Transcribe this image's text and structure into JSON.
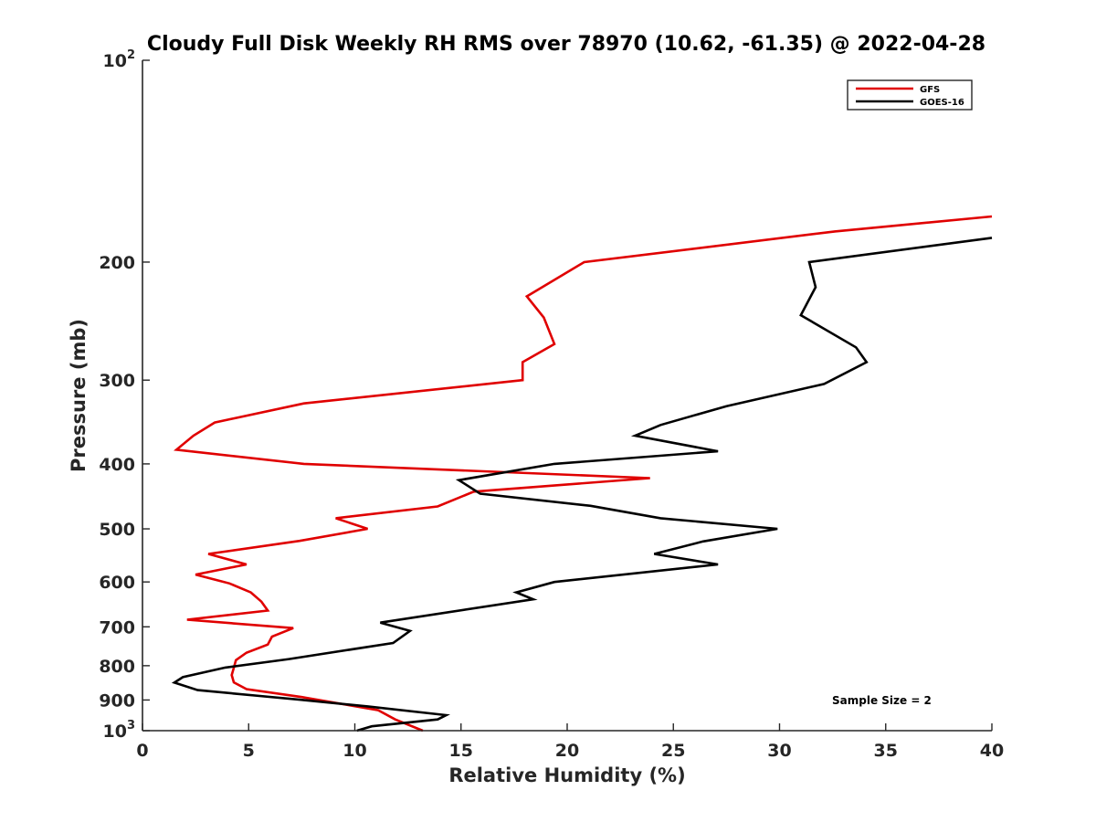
{
  "chart_data": {
    "type": "line",
    "title": "Cloudy Full Disk Weekly RH RMS over 78970 (10.62, -61.35) @ 2022-04-28",
    "xlabel": "Relative Humidity (%)",
    "ylabel": "Pressure (mb)",
    "xlim": [
      0,
      40
    ],
    "ylim": [
      100,
      1000
    ],
    "y_scale": "log",
    "y_reversed": true,
    "grid": false,
    "legend_position": "top-right",
    "annotation": "Sample Size = 2",
    "x_ticks": [
      "0",
      "5",
      "10",
      "15",
      "20",
      "25",
      "30",
      "35",
      "40"
    ],
    "y_ticks": [
      {
        "value": 100,
        "base": "10",
        "exp": "2"
      },
      {
        "value": 200,
        "base": "200",
        "exp": ""
      },
      {
        "value": 300,
        "base": "300",
        "exp": ""
      },
      {
        "value": 400,
        "base": "400",
        "exp": ""
      },
      {
        "value": 500,
        "base": "500",
        "exp": ""
      },
      {
        "value": 600,
        "base": "600",
        "exp": ""
      },
      {
        "value": 700,
        "base": "700",
        "exp": ""
      },
      {
        "value": 800,
        "base": "800",
        "exp": ""
      },
      {
        "value": 900,
        "base": "900",
        "exp": ""
      },
      {
        "value": 1000,
        "base": "10",
        "exp": "3"
      }
    ],
    "series": [
      {
        "name": "GFS",
        "color": "#e00000",
        "points": [
          [
            40,
            171
          ],
          [
            32.6,
            180
          ],
          [
            20.8,
            200
          ],
          [
            18.1,
            225
          ],
          [
            18.9,
            242
          ],
          [
            19.4,
            265
          ],
          [
            17.9,
            282
          ],
          [
            17.9,
            300
          ],
          [
            7.6,
            325
          ],
          [
            3.4,
            347
          ],
          [
            2.4,
            363
          ],
          [
            1.6,
            381
          ],
          [
            7.6,
            400
          ],
          [
            23.9,
            420
          ],
          [
            15.6,
            440
          ],
          [
            13.9,
            463
          ],
          [
            9.1,
            482
          ],
          [
            10.6,
            500
          ],
          [
            7.4,
            521
          ],
          [
            3.1,
            545
          ],
          [
            4.9,
            565
          ],
          [
            2.5,
            585
          ],
          [
            4.1,
            603
          ],
          [
            5.1,
            622
          ],
          [
            5.6,
            642
          ],
          [
            5.9,
            662
          ],
          [
            2.1,
            683
          ],
          [
            7.1,
            703
          ],
          [
            6.1,
            724
          ],
          [
            5.9,
            744
          ],
          [
            4.9,
            765
          ],
          [
            4.4,
            785
          ],
          [
            4.3,
            806
          ],
          [
            4.2,
            826
          ],
          [
            4.3,
            847
          ],
          [
            4.9,
            867
          ],
          [
            7.5,
            891
          ],
          [
            11.1,
            932
          ],
          [
            11.9,
            962
          ],
          [
            13.2,
            1000
          ]
        ]
      },
      {
        "name": "GOES-16",
        "color": "#000000",
        "points": [
          [
            40,
            184
          ],
          [
            31.4,
            200
          ],
          [
            31.7,
            218
          ],
          [
            31.0,
            240
          ],
          [
            33.6,
            268
          ],
          [
            34.1,
            282
          ],
          [
            32.1,
            304
          ],
          [
            27.5,
            328
          ],
          [
            24.4,
            350
          ],
          [
            23.2,
            363
          ],
          [
            27.1,
            383
          ],
          [
            19.4,
            400
          ],
          [
            14.9,
            423
          ],
          [
            15.9,
            443
          ],
          [
            21.1,
            462
          ],
          [
            24.4,
            482
          ],
          [
            29.9,
            500
          ],
          [
            26.4,
            522
          ],
          [
            24.1,
            545
          ],
          [
            27.1,
            565
          ],
          [
            19.4,
            600
          ],
          [
            17.6,
            622
          ],
          [
            18.4,
            637
          ],
          [
            11.2,
            690
          ],
          [
            12.6,
            710
          ],
          [
            11.8,
            740
          ],
          [
            6.9,
            782
          ],
          [
            3.9,
            805
          ],
          [
            1.9,
            832
          ],
          [
            1.5,
            848
          ],
          [
            2.6,
            870
          ],
          [
            7.4,
            899
          ],
          [
            10.6,
            920
          ],
          [
            14.3,
            948
          ],
          [
            13.9,
            962
          ],
          [
            10.8,
            985
          ],
          [
            10.1,
            1000
          ]
        ]
      }
    ]
  }
}
